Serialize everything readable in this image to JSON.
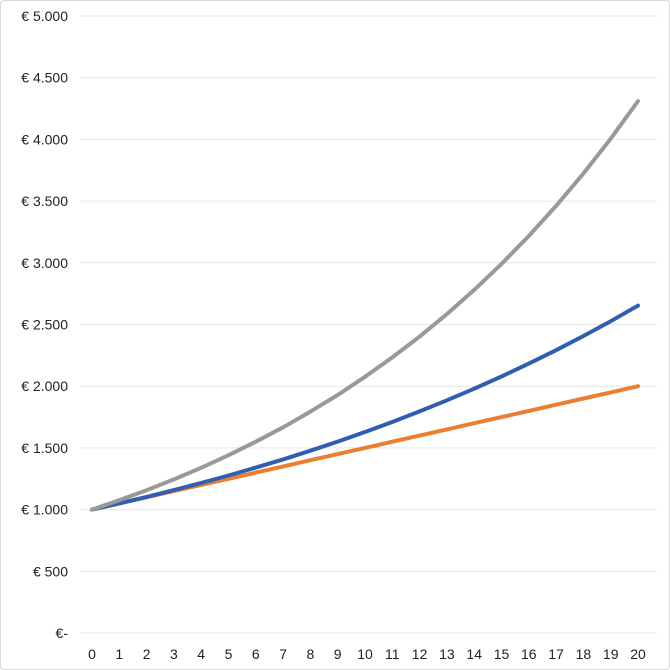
{
  "chart_data": {
    "type": "line",
    "title": "",
    "xlabel": "",
    "ylabel": "",
    "x": [
      0,
      1,
      2,
      3,
      4,
      5,
      6,
      7,
      8,
      9,
      10,
      11,
      12,
      13,
      14,
      15,
      16,
      17,
      18,
      19,
      20
    ],
    "x_tick_labels": [
      "0",
      "1",
      "2",
      "3",
      "4",
      "5",
      "6",
      "7",
      "8",
      "9",
      "10",
      "11",
      "12",
      "13",
      "14",
      "15",
      "16",
      "17",
      "18",
      "19",
      "20"
    ],
    "y_tick_values": [
      0,
      500,
      1000,
      1500,
      2000,
      2500,
      3000,
      3500,
      4000,
      4500,
      5000
    ],
    "y_tick_labels": [
      "€-",
      "€ 500",
      "€ 1.000",
      "€ 1.500",
      "€ 2.000",
      "€ 2.500",
      "€ 3.000",
      "€ 3.500",
      "€ 4.000",
      "€ 4.500",
      "€ 5.000"
    ],
    "ylim": [
      0,
      5000
    ],
    "grid": true,
    "legend": "none",
    "gridline_color": "#e6e6e6",
    "series": [
      {
        "color": "#ed7d31",
        "values": [
          1000,
          1050,
          1100,
          1150,
          1200,
          1250,
          1300,
          1350,
          1400,
          1450,
          1500,
          1550,
          1600,
          1650,
          1700,
          1750,
          1800,
          1850,
          1900,
          1950,
          2000
        ]
      },
      {
        "color": "#2f5fb0",
        "values": [
          1000,
          1050,
          1103,
          1158,
          1216,
          1276,
          1340,
          1407,
          1477,
          1551,
          1629,
          1710,
          1796,
          1886,
          1980,
          2079,
          2183,
          2292,
          2407,
          2527,
          2653
        ]
      },
      {
        "color": "#999999",
        "values": [
          1000,
          1076,
          1157,
          1245,
          1339,
          1441,
          1550,
          1667,
          1794,
          1929,
          2076,
          2233,
          2402,
          2584,
          2780,
          2991,
          3217,
          3461,
          3724,
          4006,
          4310
        ]
      }
    ]
  }
}
